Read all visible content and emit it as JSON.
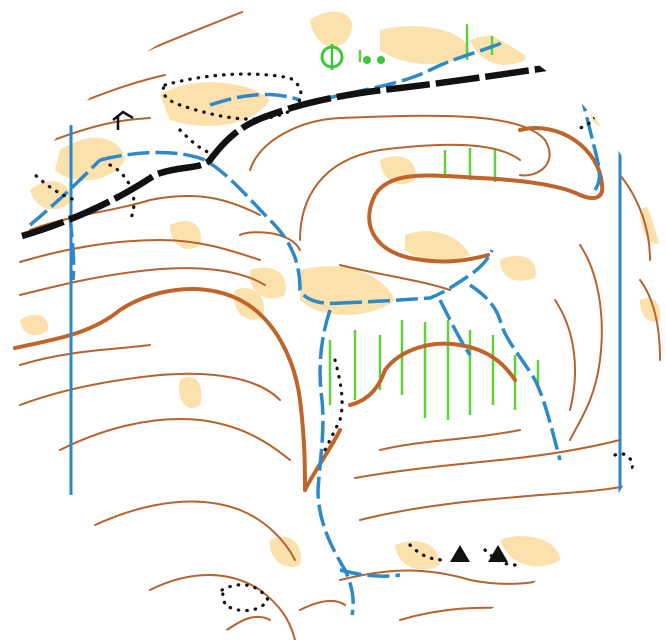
{
  "map": {
    "kind": "orienteering map excerpt (circular crop)",
    "colors": {
      "background": "#ffffff",
      "contour": "#b5632f",
      "index_contour": "#c0652a",
      "water": "#2e89c9",
      "north_lines": "#2d86c8",
      "vegetation_marsh": "#5fd13c",
      "open_rough": "#fbdc9e",
      "track": "#111111",
      "dots": "#111111",
      "feature_green": "#3ac73a"
    },
    "symbols": [
      {
        "name": "contour-lines",
        "icon": "contour"
      },
      {
        "name": "index-contours",
        "icon": "index-contour"
      },
      {
        "name": "streams",
        "icon": "dashed-water-line"
      },
      {
        "name": "north-lines",
        "icon": "magnetic-north-line"
      },
      {
        "name": "road",
        "icon": "black-dashed-track"
      },
      {
        "name": "marsh",
        "icon": "green-vertical-hatching"
      },
      {
        "name": "rough-open-land",
        "icon": "light-yellow-patches"
      },
      {
        "name": "boulders",
        "icon": "black-triangle"
      },
      {
        "name": "point-features",
        "icon": "green-circle-feature"
      }
    ],
    "crop_shape": "circle"
  }
}
